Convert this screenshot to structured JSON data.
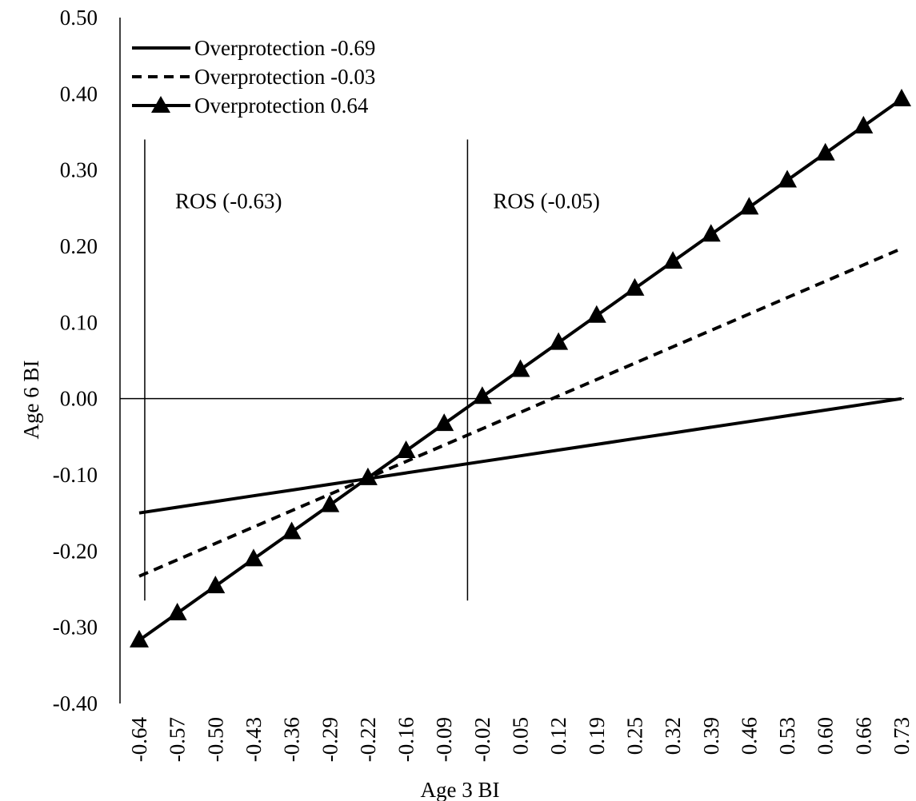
{
  "chart_data": {
    "type": "line",
    "title": "",
    "xlabel": "Age 3 BI",
    "ylabel": "Age 6 BI",
    "x": [
      "-0.64",
      "-0.57",
      "-0.50",
      "-0.43",
      "-0.36",
      "-0.29",
      "-0.22",
      "-0.16",
      "-0.09",
      "-0.02",
      "0.05",
      "0.12",
      "0.19",
      "0.25",
      "0.32",
      "0.39",
      "0.46",
      "0.53",
      "0.60",
      "0.66",
      "0.73"
    ],
    "ylim": [
      -0.4,
      0.5
    ],
    "yticks": [
      "0.50",
      "0.40",
      "0.30",
      "0.20",
      "0.10",
      "0.00",
      "-0.10",
      "-0.20",
      "-0.30",
      "-0.40"
    ],
    "grid": false,
    "legend_position": "top-left",
    "series": [
      {
        "name": "Overprotection -0.69",
        "style": "solid",
        "values": [
          -0.15,
          -0.1425,
          -0.135,
          -0.1275,
          -0.12,
          -0.1125,
          -0.105,
          -0.0975,
          -0.09,
          -0.0825,
          -0.075,
          -0.0675,
          -0.06,
          -0.0525,
          -0.045,
          -0.0375,
          -0.03,
          -0.0225,
          -0.015,
          -0.0075,
          0.0
        ]
      },
      {
        "name": "Overprotection -0.03",
        "style": "dashed",
        "values": [
          -0.233,
          -0.2115,
          -0.19,
          -0.1685,
          -0.147,
          -0.1255,
          -0.104,
          -0.0825,
          -0.061,
          -0.0395,
          -0.018,
          0.0035,
          0.025,
          0.0465,
          0.068,
          0.0895,
          0.111,
          0.1325,
          0.154,
          0.1755,
          0.197
        ]
      },
      {
        "name": "Overprotection 0.64",
        "style": "triangle-markers",
        "values": [
          -0.317,
          -0.2815,
          -0.246,
          -0.2105,
          -0.175,
          -0.1395,
          -0.104,
          -0.0685,
          -0.033,
          0.0025,
          0.038,
          0.0735,
          0.109,
          0.1445,
          0.18,
          0.2155,
          0.251,
          0.2865,
          0.322,
          0.3575,
          0.393
        ]
      }
    ],
    "annotations": [
      {
        "label": "ROS (-0.63)",
        "x": -0.63
      },
      {
        "label": "ROS (-0.05)",
        "x": -0.05
      }
    ]
  }
}
